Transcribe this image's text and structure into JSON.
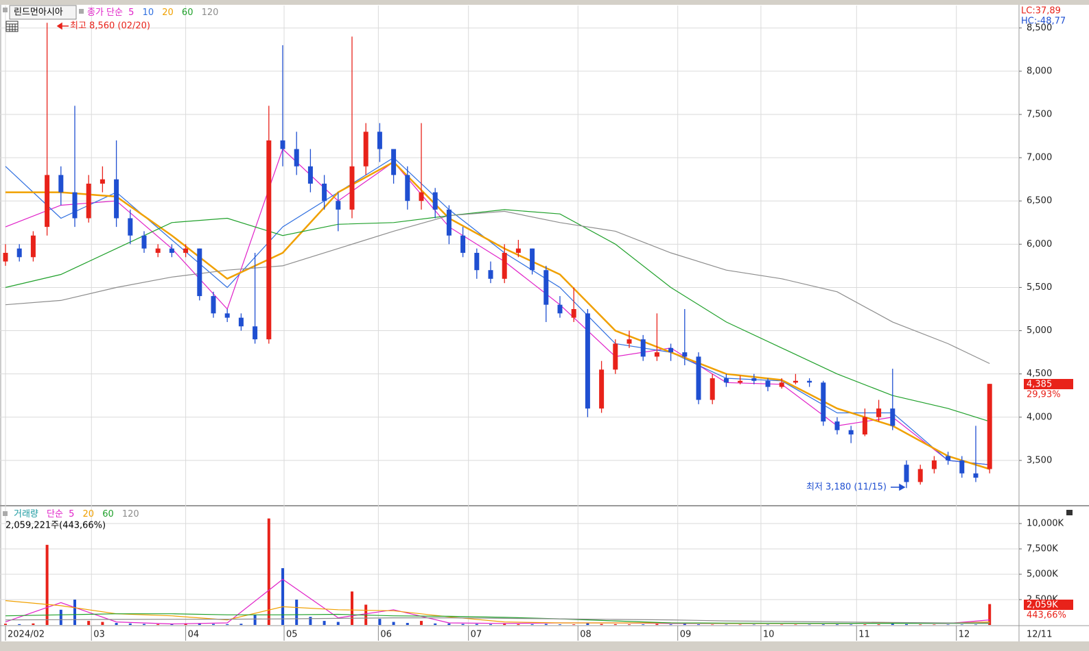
{
  "chart_data": [
    {
      "type": "candlestick",
      "title": "린드먼아시아",
      "legend_label": "종가 단순",
      "up_color": "#e8221a",
      "down_color": "#1f4fd1",
      "open": [
        5800,
        5950,
        5850,
        6200,
        6800,
        6600,
        6300,
        6700,
        6750,
        6300,
        6100,
        5900,
        5950,
        5900,
        5950,
        5400,
        5200,
        5150,
        5050,
        4900,
        7200,
        7100,
        6900,
        6700,
        6500,
        6400,
        6900,
        7300,
        7100,
        6800,
        6500,
        6600,
        6400,
        6100,
        5900,
        5700,
        5600,
        5900,
        5950,
        5700,
        5300,
        5150,
        5200,
        4100,
        4550,
        4850,
        4900,
        4700,
        4800,
        4750,
        4700,
        4200,
        4450,
        4400,
        4450,
        4420,
        4350,
        4400,
        4420,
        4400,
        3950,
        3850,
        3800,
        4000,
        4100,
        3450,
        3250,
        3400,
        3550,
        3500,
        3350,
        3400
      ],
      "high": [
        6000,
        6000,
        6150,
        8560,
        6900,
        7600,
        6800,
        6900,
        7200,
        6400,
        6150,
        6000,
        6000,
        6000,
        5950,
        5450,
        5250,
        5200,
        5900,
        7600,
        8300,
        7300,
        7100,
        6800,
        6600,
        8400,
        7400,
        7400,
        7100,
        6900,
        7400,
        6650,
        6450,
        6200,
        5950,
        5800,
        6000,
        6050,
        5950,
        5750,
        5400,
        5500,
        5250,
        4650,
        4900,
        5000,
        4950,
        5200,
        4850,
        5250,
        4750,
        4500,
        4500,
        4480,
        4500,
        4450,
        4450,
        4500,
        4450,
        4420,
        4000,
        3900,
        4100,
        4200,
        4560,
        3500,
        3450,
        3550,
        3600,
        3550,
        3900,
        4385
      ],
      "low": [
        5750,
        5800,
        5800,
        6100,
        6450,
        6200,
        6250,
        6600,
        6200,
        6000,
        5900,
        5850,
        5850,
        5850,
        5350,
        5150,
        5100,
        5000,
        4850,
        4850,
        6900,
        6800,
        6600,
        6400,
        6150,
        6300,
        6800,
        6950,
        6700,
        6400,
        6400,
        6300,
        6000,
        5850,
        5600,
        5550,
        5550,
        5850,
        5650,
        5100,
        5150,
        5100,
        4000,
        4050,
        4500,
        4800,
        4650,
        4650,
        4650,
        4600,
        4150,
        4150,
        4350,
        4380,
        4380,
        4300,
        4330,
        4380,
        4350,
        3900,
        3800,
        3700,
        3780,
        3950,
        3850,
        3180,
        3220,
        3350,
        3450,
        3300,
        3250,
        3350
      ],
      "close": [
        5900,
        5850,
        6100,
        6800,
        6600,
        6300,
        6700,
        6750,
        6300,
        6100,
        5950,
        5950,
        5900,
        5950,
        5400,
        5200,
        5150,
        5050,
        4900,
        7200,
        7100,
        6900,
        6700,
        6500,
        6400,
        6900,
        7300,
        7100,
        6800,
        6500,
        6600,
        6400,
        6100,
        5900,
        5700,
        5600,
        5900,
        5950,
        5700,
        5300,
        5200,
        5250,
        4100,
        4550,
        4850,
        4900,
        4700,
        4750,
        4750,
        4700,
        4200,
        4450,
        4400,
        4420,
        4420,
        4350,
        4400,
        4420,
        4400,
        3950,
        3850,
        3800,
        4000,
        4100,
        3900,
        3250,
        3400,
        3500,
        3500,
        3350,
        3300,
        4385
      ],
      "ma_x": [
        0,
        4,
        8,
        12,
        16,
        20,
        24,
        28,
        32,
        36,
        40,
        44,
        48,
        52,
        56,
        60,
        64,
        68,
        71
      ],
      "series": [
        {
          "name": "5",
          "color": "#e020c8",
          "values": [
            6200,
            6450,
            6500,
            5950,
            5250,
            7100,
            6500,
            6950,
            6200,
            5800,
            5300,
            4700,
            4800,
            4400,
            4380,
            3900,
            4000,
            3500,
            3450
          ]
        },
        {
          "name": "10",
          "color": "#2f6fe0",
          "values": [
            6900,
            6300,
            6600,
            6050,
            5500,
            6200,
            6600,
            7000,
            6400,
            5900,
            5500,
            4850,
            4750,
            4450,
            4420,
            4050,
            4050,
            3500,
            3450
          ]
        },
        {
          "name": "20",
          "color": "#f0a000",
          "values": [
            6600,
            6600,
            6550,
            6100,
            5600,
            5900,
            6600,
            6950,
            6300,
            5950,
            5650,
            5000,
            4750,
            4500,
            4430,
            4100,
            3900,
            3550,
            3400
          ]
        },
        {
          "name": "60",
          "color": "#1fa02a",
          "values": [
            5500,
            5650,
            5950,
            6250,
            6300,
            6100,
            6230,
            6250,
            6330,
            6400,
            6350,
            6000,
            5500,
            5100,
            4800,
            4500,
            4250,
            4100,
            3950
          ]
        },
        {
          "name": "120",
          "color": "#8c8c8c",
          "values": [
            5300,
            5350,
            5500,
            5620,
            5700,
            5750,
            5950,
            6150,
            6330,
            6380,
            6250,
            6150,
            5900,
            5700,
            5600,
            5450,
            5100,
            4850,
            4620
          ]
        }
      ],
      "ylim": [
        2984,
        8760
      ],
      "yticks": [
        {
          "value": 3500,
          "label": "3,500"
        },
        {
          "value": 4000,
          "label": "4,000"
        },
        {
          "value": 4500,
          "label": "4,500"
        },
        {
          "value": 5000,
          "label": "5,000"
        },
        {
          "value": 5500,
          "label": "5,500"
        },
        {
          "value": 6000,
          "label": "6,000"
        },
        {
          "value": 6500,
          "label": "6,500"
        },
        {
          "value": 7000,
          "label": "7,000"
        },
        {
          "value": 7500,
          "label": "7,500"
        },
        {
          "value": 8000,
          "label": "8,000"
        },
        {
          "value": 8500,
          "label": "8,500"
        }
      ],
      "high_label": "최고 8,560 (02/20)",
      "low_label": "최저 3,180 (11/15)",
      "lc_label": "LC:37,89",
      "hc_label": "HC:-48,77",
      "last_label": "4,385",
      "change_label": "29,93%",
      "grid": true
    },
    {
      "type": "bar",
      "title": "거래량",
      "legend_label": "단순",
      "summary": "2,059,221주(443,66%)",
      "values": [
        120,
        80,
        150,
        7900,
        1500,
        2500,
        400,
        300,
        200,
        150,
        100,
        80,
        80,
        100,
        150,
        100,
        80,
        120,
        1000,
        10500,
        5600,
        2500,
        800,
        400,
        300,
        3300,
        2000,
        600,
        300,
        200,
        400,
        150,
        150,
        100,
        100,
        80,
        120,
        80,
        80,
        100,
        60,
        60,
        200,
        100,
        80,
        60,
        60,
        100,
        60,
        100,
        60,
        40,
        40,
        40,
        40,
        40,
        40,
        40,
        40,
        60,
        60,
        50,
        60,
        60,
        120,
        80,
        50,
        40,
        40,
        40,
        40,
        2059
      ],
      "ma_x": [
        0,
        4,
        8,
        12,
        16,
        20,
        24,
        28,
        32,
        36,
        40,
        44,
        48,
        52,
        56,
        60,
        64,
        68,
        71
      ],
      "series": [
        {
          "name": "5",
          "color": "#e020c8",
          "values": [
            300,
            2200,
            300,
            100,
            200,
            4500,
            700,
            1500,
            200,
            150,
            200,
            200,
            150,
            150,
            150,
            150,
            200,
            150,
            500
          ]
        },
        {
          "name": "20",
          "color": "#f0a000",
          "values": [
            2400,
            1900,
            1100,
            900,
            500,
            1800,
            1500,
            1400,
            800,
            300,
            200,
            200,
            200,
            150,
            150,
            150,
            200,
            180,
            300
          ]
        },
        {
          "name": "60",
          "color": "#1fa02a",
          "values": [
            900,
            1000,
            1100,
            1100,
            1000,
            1000,
            1050,
            900,
            850,
            750,
            600,
            400,
            200,
            180,
            170,
            160,
            160,
            160,
            160
          ]
        },
        {
          "name": "120",
          "color": "#8c8c8c",
          "values": [
            500,
            520,
            550,
            560,
            570,
            600,
            650,
            700,
            700,
            650,
            600,
            550,
            500,
            400,
            350,
            300,
            250,
            200,
            200
          ]
        }
      ],
      "ylim": [
        0,
        11622
      ],
      "yticks": [
        {
          "value": 2500,
          "label": "2,500K"
        },
        {
          "value": 5000,
          "label": "5,000K"
        },
        {
          "value": 7500,
          "label": "7,500K"
        },
        {
          "value": 10000,
          "label": "10,000K"
        }
      ],
      "last_label": "2,059K",
      "change_label": "443,66%",
      "xticks": [
        {
          "value": 0,
          "label": "2024/02"
        },
        {
          "value": 6.2,
          "label": "03"
        },
        {
          "value": 13,
          "label": "04"
        },
        {
          "value": 20.1,
          "label": "05"
        },
        {
          "value": 26.9,
          "label": "06"
        },
        {
          "value": 33.4,
          "label": "07"
        },
        {
          "value": 41.3,
          "label": "08"
        },
        {
          "value": 48.5,
          "label": "09"
        },
        {
          "value": 54.5,
          "label": "10"
        },
        {
          "value": 61.4,
          "label": "11"
        },
        {
          "value": 68.6,
          "label": "12"
        }
      ],
      "end_label": "12/11",
      "grid": true
    }
  ]
}
